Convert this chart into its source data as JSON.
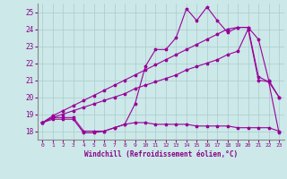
{
  "background_color": "#cce8e8",
  "grid_color": "#aacccc",
  "line_color": "#990099",
  "marker": "*",
  "xlabel": "Windchill (Refroidissement éolien,°C)",
  "xlim": [
    -0.5,
    23.5
  ],
  "ylim": [
    17.5,
    25.5
  ],
  "yticks": [
    18,
    19,
    20,
    21,
    22,
    23,
    24,
    25
  ],
  "xticks": [
    0,
    1,
    2,
    3,
    4,
    5,
    6,
    7,
    8,
    9,
    10,
    11,
    12,
    13,
    14,
    15,
    16,
    17,
    18,
    19,
    20,
    21,
    22,
    23
  ],
  "series": [
    {
      "x": [
        0,
        1,
        2,
        3,
        4,
        5,
        6,
        7,
        8,
        9,
        10,
        11,
        12,
        13,
        14,
        15,
        16,
        17,
        18,
        19,
        20,
        21,
        22,
        23
      ],
      "y": [
        18.5,
        18.7,
        18.7,
        18.7,
        17.9,
        17.9,
        18.0,
        18.2,
        18.4,
        18.5,
        18.5,
        18.4,
        18.4,
        18.4,
        18.4,
        18.3,
        18.3,
        18.3,
        18.3,
        18.2,
        18.2,
        18.2,
        18.2,
        18.0
      ]
    },
    {
      "x": [
        0,
        1,
        2,
        3,
        4,
        5,
        6,
        7,
        8,
        9,
        10,
        11,
        12,
        13,
        14,
        15,
        16,
        17,
        18,
        19,
        20,
        21,
        22,
        23
      ],
      "y": [
        18.5,
        18.8,
        19.0,
        19.2,
        19.4,
        19.6,
        19.8,
        20.0,
        20.2,
        20.5,
        20.7,
        20.9,
        21.1,
        21.3,
        21.6,
        21.8,
        22.0,
        22.2,
        22.5,
        22.7,
        24.0,
        21.0,
        20.9,
        20.0
      ]
    },
    {
      "x": [
        0,
        1,
        2,
        3,
        4,
        5,
        6,
        7,
        8,
        9,
        10,
        11,
        12,
        13,
        14,
        15,
        16,
        17,
        18,
        19,
        20,
        21,
        22,
        23
      ],
      "y": [
        18.5,
        18.9,
        19.2,
        19.5,
        19.8,
        20.1,
        20.4,
        20.7,
        21.0,
        21.3,
        21.6,
        21.9,
        22.2,
        22.5,
        22.8,
        23.1,
        23.4,
        23.7,
        24.0,
        24.1,
        24.1,
        23.4,
        21.0,
        20.0
      ]
    },
    {
      "x": [
        0,
        1,
        2,
        3,
        4,
        5,
        6,
        7,
        8,
        9,
        10,
        11,
        12,
        13,
        14,
        15,
        16,
        17,
        18,
        19,
        20,
        21,
        22,
        23
      ],
      "y": [
        18.5,
        18.8,
        18.8,
        18.8,
        18.0,
        18.0,
        18.0,
        18.2,
        18.4,
        19.6,
        21.8,
        22.8,
        22.8,
        23.5,
        25.2,
        24.5,
        25.3,
        24.5,
        23.8,
        24.1,
        24.1,
        21.2,
        20.9,
        17.9
      ]
    }
  ]
}
